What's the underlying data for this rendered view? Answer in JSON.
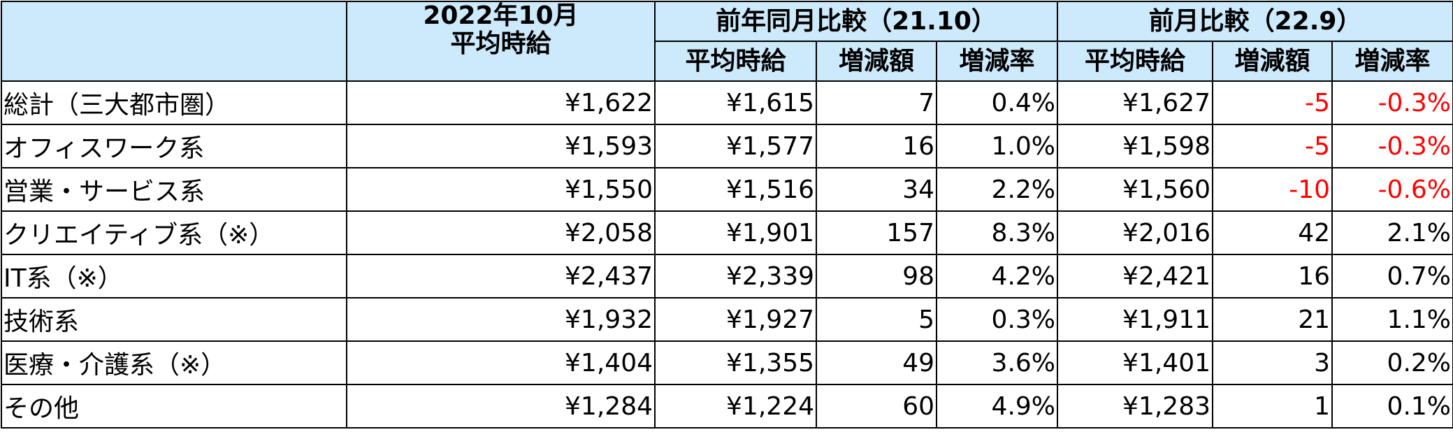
{
  "table": {
    "header": {
      "col1": [
        "2022年10月",
        "平均時給"
      ],
      "group1": "前年同月比較（21.10）",
      "group2": "前月比較（22.9）",
      "sub": [
        "平均時給",
        "増減額",
        "増減率",
        "平均時給",
        "増減額",
        "増減率"
      ],
      "background": "#cdeafc"
    },
    "negative_color": "#ff0000",
    "rows": [
      [
        "総計（三大都市圏）",
        "¥1,622",
        "¥1,615",
        "7",
        "0.4%",
        "¥1,627",
        "-5",
        "-0.3%"
      ],
      [
        "オフィスワーク系",
        "¥1,593",
        "¥1,577",
        "16",
        "1.0%",
        "¥1,598",
        "-5",
        "-0.3%"
      ],
      [
        "営業・サービス系",
        "¥1,550",
        "¥1,516",
        "34",
        "2.2%",
        "¥1,560",
        "-10",
        "-0.6%"
      ],
      [
        "クリエイティブ系（※）",
        "¥2,058",
        "¥1,901",
        "157",
        "8.3%",
        "¥2,016",
        "42",
        "2.1%"
      ],
      [
        "IT系（※）",
        "¥2,437",
        "¥2,339",
        "98",
        "4.2%",
        "¥2,421",
        "16",
        "0.7%"
      ],
      [
        "技術系",
        "¥1,932",
        "¥1,927",
        "5",
        "0.3%",
        "¥1,911",
        "21",
        "1.1%"
      ],
      [
        "医療・介護系（※）",
        "¥1,404",
        "¥1,355",
        "49",
        "3.6%",
        "¥1,401",
        "3",
        "0.2%"
      ],
      [
        "その他",
        "¥1,284",
        "¥1,224",
        "60",
        "4.9%",
        "¥1,283",
        "1",
        "0.1%"
      ]
    ]
  }
}
